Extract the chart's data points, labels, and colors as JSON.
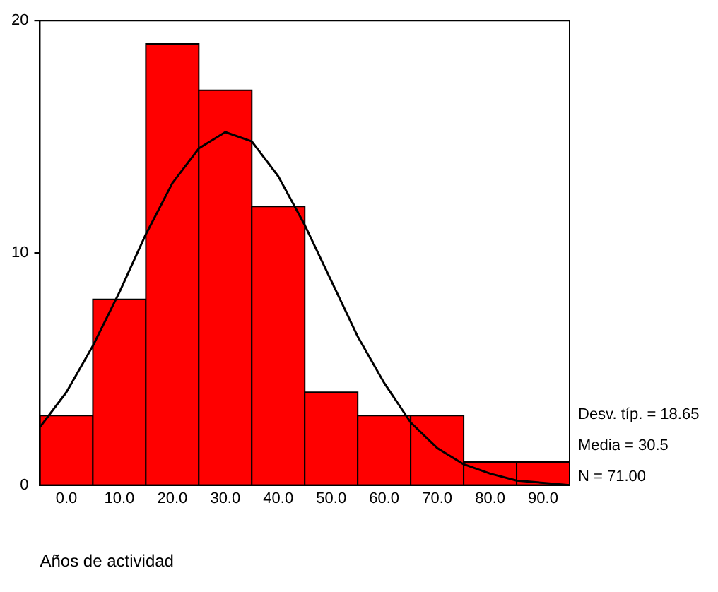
{
  "chart_data": {
    "type": "histogram",
    "xlabel": "Años de actividad",
    "bins": [
      -5,
      5,
      15,
      25,
      35,
      45,
      55,
      65,
      75,
      85,
      95
    ],
    "values": [
      3,
      8,
      19,
      17,
      12,
      4,
      3,
      3,
      1,
      1
    ],
    "color": "#ff0000",
    "series": [
      {
        "type": "line",
        "color": "#000000",
        "x": [
          -5,
          0,
          5,
          10,
          15,
          20,
          25,
          30,
          35,
          40,
          45,
          50,
          55,
          60,
          65,
          70,
          75,
          80,
          85,
          90,
          95
        ],
        "values": [
          2.5,
          4.0,
          6.0,
          8.3,
          10.8,
          13.0,
          14.5,
          15.2,
          14.8,
          13.3,
          11.2,
          8.8,
          6.4,
          4.4,
          2.7,
          1.6,
          0.9,
          0.5,
          0.2,
          0.1,
          0.0
        ]
      }
    ],
    "xlim": [
      -5,
      95
    ],
    "xticks": [
      {
        "value": 0,
        "label": "0.0"
      },
      {
        "value": 10,
        "label": "10.0"
      },
      {
        "value": 20,
        "label": "20.0"
      },
      {
        "value": 30,
        "label": "30.0"
      },
      {
        "value": 40,
        "label": "40.0"
      },
      {
        "value": 50,
        "label": "50.0"
      },
      {
        "value": 60,
        "label": "60.0"
      },
      {
        "value": 70,
        "label": "70.0"
      },
      {
        "value": 80,
        "label": "80.0"
      },
      {
        "value": 90,
        "label": "90.0"
      }
    ],
    "ylim": [
      0,
      20
    ],
    "yticks": [
      0,
      10,
      20
    ],
    "annotations": [
      "Desv. típ. = 18.65",
      "Media = 30.5",
      "N = 71.00"
    ],
    "grid": false,
    "legend": false
  }
}
